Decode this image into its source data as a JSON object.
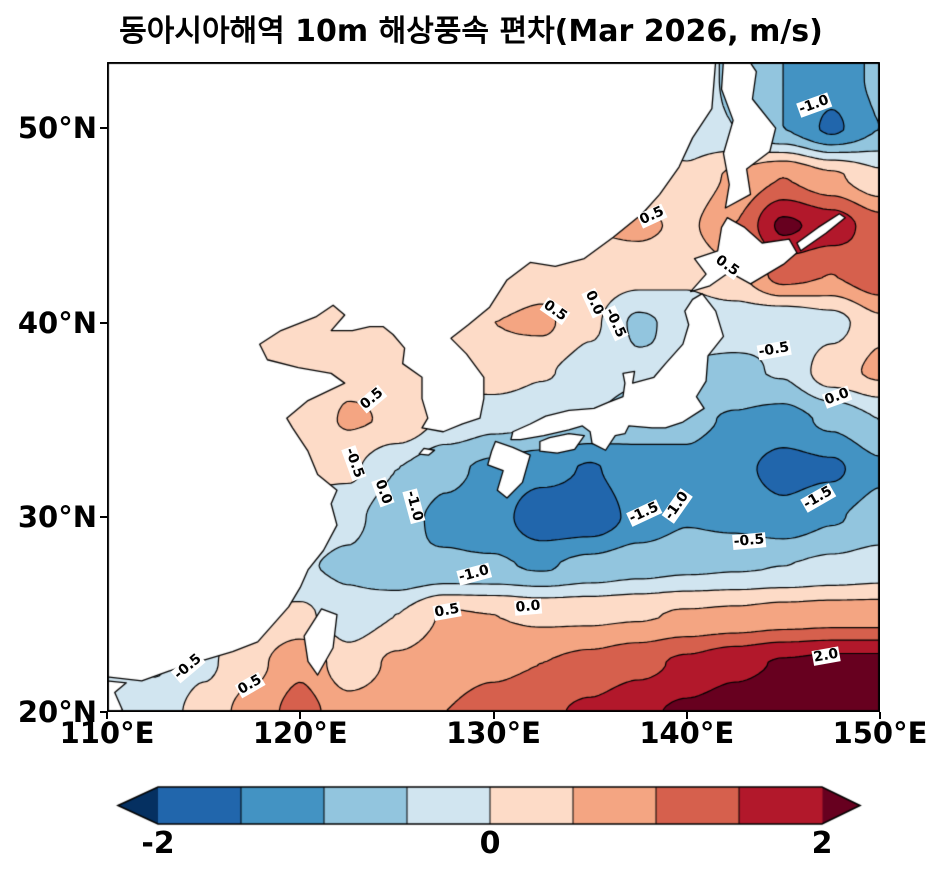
{
  "title": "동아시아해역 10m 해상풍속 편차(Mar 2026, m/s)",
  "axes": {
    "lon_min": 110,
    "lon_max": 150,
    "lat_min": 20,
    "lat_max": 53.4,
    "x_ticks": [
      {
        "label": "110°E",
        "lon": 110
      },
      {
        "label": "120°E",
        "lon": 120
      },
      {
        "label": "130°E",
        "lon": 130
      },
      {
        "label": "140°E",
        "lon": 140
      },
      {
        "label": "150°E",
        "lon": 150
      }
    ],
    "y_ticks": [
      {
        "label": "50°N",
        "lat": 50
      },
      {
        "label": "40°N",
        "lat": 40
      },
      {
        "label": "30°N",
        "lat": 30
      },
      {
        "label": "20°N",
        "lat": 20
      }
    ]
  },
  "colorbar": {
    "levels": [
      -2,
      -1.5,
      -1,
      -0.5,
      0,
      0.5,
      1,
      1.5,
      2
    ],
    "colors": [
      "#2166ac",
      "#4393c3",
      "#92c5de",
      "#d1e5f0",
      "#fddbc7",
      "#f4a582",
      "#d6604d",
      "#b2182b"
    ],
    "under_color": "#053061",
    "over_color": "#67001f",
    "tick_labels": [
      {
        "label": "-2",
        "frac": 0
      },
      {
        "label": "0",
        "frac": 0.5
      },
      {
        "label": "2",
        "frac": 1
      }
    ]
  },
  "chart_data": {
    "type": "heatmap",
    "units": "m/s",
    "lons": [
      110,
      112.5,
      115,
      117.5,
      120,
      122.5,
      125,
      127.5,
      130,
      132.5,
      135,
      137.5,
      140,
      142.5,
      145,
      147.5,
      150
    ],
    "lats": [
      52.5,
      50,
      47.5,
      45,
      42.5,
      40,
      37.5,
      35,
      32.5,
      30,
      27.5,
      25,
      22.5,
      20
    ],
    "values": [
      [
        0,
        0,
        0,
        0,
        0,
        0,
        0,
        0,
        0,
        0.1,
        0.1,
        0.1,
        -0.2,
        -0.6,
        -1.0,
        -1.3,
        -0.9
      ],
      [
        0,
        0,
        0,
        0,
        0,
        0,
        0,
        0,
        0,
        0.1,
        0.1,
        0.1,
        -0.3,
        -0.5,
        -1.0,
        -1.6,
        -1.0
      ],
      [
        0,
        0,
        0,
        0,
        0,
        0,
        0,
        0,
        0,
        0.1,
        0.2,
        0.2,
        0.1,
        0.6,
        1.0,
        0.6,
        0.1
      ],
      [
        0,
        0,
        0,
        0,
        0,
        0,
        0,
        0,
        0.1,
        0.3,
        0.5,
        0.6,
        0.4,
        1.0,
        2.1,
        1.8,
        1.2
      ],
      [
        0,
        0,
        0,
        0,
        0,
        0,
        0,
        0,
        0.1,
        0.3,
        0.3,
        0.2,
        0.1,
        0.4,
        1.2,
        1.0,
        1.4
      ],
      [
        0,
        0,
        0,
        0,
        0,
        0.1,
        0.1,
        0.2,
        0.5,
        0.6,
        0.1,
        -0.6,
        -0.3,
        -0.3,
        -0.45,
        -0.2,
        0.4
      ],
      [
        0,
        0,
        0,
        0,
        0.1,
        0.4,
        0.45,
        0.05,
        0.3,
        0.05,
        -0.2,
        -0.4,
        -0.55,
        -0.6,
        -0.45,
        0.3,
        0.6
      ],
      [
        0,
        0,
        0,
        0.1,
        0.2,
        0.55,
        0.45,
        -0.1,
        -0.35,
        -0.4,
        -0.5,
        -0.8,
        -0.9,
        -1.05,
        -1.2,
        -0.9,
        -0.5
      ],
      [
        0,
        0,
        0,
        0,
        0.1,
        0.1,
        -0.5,
        -0.9,
        -1.1,
        -1.3,
        -1.55,
        -1.2,
        -1.1,
        -1.35,
        -1.7,
        -1.6,
        -1.1
      ],
      [
        0,
        0,
        -0.1,
        -0.1,
        -0.15,
        -0.35,
        -0.85,
        -1.1,
        -1.25,
        -1.9,
        -1.85,
        -1.35,
        -1.05,
        -1.15,
        -1.35,
        -1.05,
        -0.8
      ],
      [
        0,
        -0.1,
        -0.2,
        -0.3,
        -0.45,
        -0.6,
        -1.0,
        -0.95,
        -0.95,
        -1.05,
        -0.85,
        -0.7,
        -0.6,
        -0.55,
        -0.5,
        -0.4,
        -0.3
      ],
      [
        -0.1,
        -0.1,
        -0.15,
        0.0,
        0.1,
        -0.3,
        0.0,
        0.55,
        0.5,
        0.4,
        0.4,
        0.45,
        0.55,
        0.6,
        0.7,
        0.75,
        0.75
      ],
      [
        -0.2,
        -0.55,
        -0.1,
        0.35,
        0.9,
        0.2,
        0.6,
        0.8,
        0.9,
        1.0,
        1.15,
        1.35,
        1.6,
        1.85,
        2.05,
        2.15,
        2.15
      ],
      [
        -0.1,
        -0.3,
        0.2,
        0.7,
        1.2,
        0.7,
        0.8,
        1.0,
        1.2,
        1.4,
        1.6,
        1.9,
        2.1,
        2.3,
        2.5,
        2.5,
        2.4
      ]
    ],
    "contour_levels_dashed": [
      -1.5,
      -1.0,
      -0.5
    ],
    "contour_levels_solid": [
      0,
      0.5,
      1.0,
      1.5,
      2.0
    ],
    "contour_labels": [
      {
        "text": "0.5",
        "lon": 138.2,
        "lat": 45.5,
        "rot": -25
      },
      {
        "text": "0.5",
        "lon": 142.1,
        "lat": 42.9,
        "rot": 35
      },
      {
        "text": "0.5",
        "lon": 133.2,
        "lat": 40.6,
        "rot": 35
      },
      {
        "text": "0.0",
        "lon": 135.2,
        "lat": 41.0,
        "rot": 65
      },
      {
        "text": "-0.5",
        "lon": 136.3,
        "lat": 40.0,
        "rot": 65
      },
      {
        "text": "-0.5",
        "lon": 144.5,
        "lat": 38.6,
        "rot": -10
      },
      {
        "text": "0.0",
        "lon": 147.8,
        "lat": 36.2,
        "rot": -20
      },
      {
        "text": "0.5",
        "lon": 123.7,
        "lat": 36.1,
        "rot": -40
      },
      {
        "text": "-0.5",
        "lon": 122.8,
        "lat": 32.8,
        "rot": 70
      },
      {
        "text": "0.0",
        "lon": 124.3,
        "lat": 31.3,
        "rot": 70
      },
      {
        "text": "-1.0",
        "lon": 125.9,
        "lat": 30.6,
        "rot": 75
      },
      {
        "text": "-1.0",
        "lon": 129.0,
        "lat": 27.1,
        "rot": -15
      },
      {
        "text": "-1.5",
        "lon": 137.8,
        "lat": 30.2,
        "rot": -25
      },
      {
        "text": "-1.0",
        "lon": 139.5,
        "lat": 30.6,
        "rot": -55
      },
      {
        "text": "-1.5",
        "lon": 146.8,
        "lat": 31.0,
        "rot": -30
      },
      {
        "text": "-0.5",
        "lon": 143.2,
        "lat": 28.8,
        "rot": -5
      },
      {
        "text": "0.5",
        "lon": 127.6,
        "lat": 25.2,
        "rot": -10
      },
      {
        "text": "0.0",
        "lon": 131.8,
        "lat": 25.4,
        "rot": -5
      },
      {
        "text": "0.5",
        "lon": 117.4,
        "lat": 21.4,
        "rot": -30
      },
      {
        "text": "-0.5",
        "lon": 114.2,
        "lat": 22.3,
        "rot": -40
      },
      {
        "text": "2.0",
        "lon": 147.2,
        "lat": 22.9,
        "rot": -10
      },
      {
        "text": "-1.0",
        "lon": 146.6,
        "lat": 51.2,
        "rot": -20
      }
    ]
  },
  "coastlines": {
    "mainland": [
      [
        110,
        21.8
      ],
      [
        111.8,
        21.6
      ],
      [
        113.2,
        22.1
      ],
      [
        114.8,
        22.6
      ],
      [
        116.5,
        23.1
      ],
      [
        117.8,
        23.6
      ],
      [
        118.6,
        24.5
      ],
      [
        119.4,
        25.4
      ],
      [
        120.0,
        26.4
      ],
      [
        120.4,
        27.3
      ],
      [
        121.2,
        28.3
      ],
      [
        121.9,
        29.6
      ],
      [
        121.6,
        30.7
      ],
      [
        121.9,
        31.4
      ],
      [
        120.9,
        32.2
      ],
      [
        120.4,
        33.4
      ],
      [
        119.6,
        34.6
      ],
      [
        119.3,
        35.1
      ],
      [
        120.4,
        36.0
      ],
      [
        122.3,
        36.9
      ],
      [
        121.6,
        37.4
      ],
      [
        119.9,
        37.7
      ],
      [
        118.3,
        38.1
      ],
      [
        117.9,
        38.9
      ],
      [
        119.0,
        39.6
      ],
      [
        120.8,
        40.3
      ],
      [
        121.7,
        40.9
      ],
      [
        122.3,
        40.4
      ],
      [
        121.6,
        39.6
      ],
      [
        122.7,
        39.6
      ],
      [
        123.6,
        39.8
      ],
      [
        124.3,
        39.8
      ],
      [
        124.8,
        39.4
      ],
      [
        125.4,
        38.7
      ],
      [
        125.3,
        37.9
      ],
      [
        126.3,
        37.2
      ],
      [
        126.3,
        36.1
      ],
      [
        126.6,
        35.1
      ],
      [
        126.3,
        34.6
      ],
      [
        127.4,
        34.4
      ],
      [
        128.4,
        34.8
      ],
      [
        129.3,
        35.1
      ],
      [
        129.5,
        36.1
      ],
      [
        129.5,
        37.2
      ],
      [
        128.6,
        38.4
      ],
      [
        127.8,
        39.2
      ],
      [
        128.7,
        39.9
      ],
      [
        129.8,
        40.8
      ],
      [
        130.7,
        42.2
      ],
      [
        131.9,
        43.1
      ],
      [
        133.2,
        42.9
      ],
      [
        134.7,
        43.3
      ],
      [
        136.2,
        44.4
      ],
      [
        137.7,
        45.6
      ],
      [
        138.6,
        46.6
      ],
      [
        139.6,
        48.0
      ],
      [
        140.3,
        49.5
      ],
      [
        141.3,
        51.0
      ],
      [
        141.5,
        53.5
      ],
      [
        110,
        53.5
      ]
    ],
    "honshu": [
      [
        140.8,
        41.5
      ],
      [
        141.5,
        40.6
      ],
      [
        141.9,
        39.3
      ],
      [
        141.1,
        38.3
      ],
      [
        141.0,
        37.0
      ],
      [
        140.5,
        36.2
      ],
      [
        140.9,
        35.6
      ],
      [
        139.8,
        34.9
      ],
      [
        138.9,
        34.6
      ],
      [
        138.2,
        34.6
      ],
      [
        137.0,
        34.7
      ],
      [
        136.8,
        34.3
      ],
      [
        136.3,
        34.2
      ],
      [
        135.8,
        33.45
      ],
      [
        135.1,
        33.8
      ],
      [
        135.0,
        34.4
      ],
      [
        134.6,
        34.7
      ],
      [
        133.9,
        34.5
      ],
      [
        132.6,
        34.2
      ],
      [
        131.4,
        34.0
      ],
      [
        130.9,
        34.0
      ],
      [
        131.0,
        34.4
      ],
      [
        131.9,
        34.8
      ],
      [
        132.7,
        35.2
      ],
      [
        133.9,
        35.5
      ],
      [
        135.2,
        35.6
      ],
      [
        135.9,
        35.9
      ],
      [
        136.7,
        36.2
      ],
      [
        136.8,
        36.9
      ],
      [
        136.7,
        37.4
      ],
      [
        137.3,
        37.5
      ],
      [
        137.2,
        36.9
      ],
      [
        138.3,
        37.2
      ],
      [
        138.9,
        37.9
      ],
      [
        139.8,
        38.9
      ],
      [
        140.1,
        39.9
      ],
      [
        139.9,
        40.6
      ],
      [
        140.3,
        41.2
      ]
    ],
    "kyushu": [
      [
        130.1,
        33.9
      ],
      [
        131.0,
        33.6
      ],
      [
        131.9,
        33.2
      ],
      [
        131.5,
        31.8
      ],
      [
        130.7,
        31.0
      ],
      [
        130.2,
        31.4
      ],
      [
        130.5,
        32.4
      ],
      [
        129.7,
        32.7
      ],
      [
        129.9,
        33.4
      ]
    ],
    "shikoku": [
      [
        132.4,
        33.4
      ],
      [
        133.3,
        33.3
      ],
      [
        134.2,
        33.5
      ],
      [
        134.7,
        34.2
      ],
      [
        133.9,
        34.3
      ],
      [
        132.9,
        34.1
      ],
      [
        132.4,
        33.9
      ]
    ],
    "hokkaido": [
      [
        140.2,
        41.6
      ],
      [
        141.0,
        42.5
      ],
      [
        140.4,
        43.3
      ],
      [
        141.6,
        43.7
      ],
      [
        141.8,
        44.9
      ],
      [
        142.1,
        45.4
      ],
      [
        143.0,
        44.9
      ],
      [
        143.9,
        44.1
      ],
      [
        145.3,
        44.3
      ],
      [
        145.7,
        43.6
      ],
      [
        145.0,
        43.0
      ],
      [
        143.3,
        42.0
      ],
      [
        142.2,
        42.6
      ],
      [
        141.2,
        41.9
      ]
    ],
    "sakhalin": [
      [
        142.0,
        45.9
      ],
      [
        143.3,
        46.6
      ],
      [
        143.1,
        47.9
      ],
      [
        144.3,
        48.8
      ],
      [
        144.6,
        50.0
      ],
      [
        143.4,
        51.5
      ],
      [
        143.6,
        52.9
      ],
      [
        143.2,
        53.5
      ],
      [
        141.9,
        53.5
      ],
      [
        141.8,
        52.0
      ],
      [
        142.4,
        50.4
      ],
      [
        141.9,
        48.7
      ],
      [
        142.2,
        47.1
      ]
    ],
    "taiwan": [
      [
        120.9,
        21.9
      ],
      [
        121.7,
        23.3
      ],
      [
        121.9,
        25.0
      ],
      [
        121.1,
        25.3
      ],
      [
        120.2,
        23.9
      ],
      [
        120.4,
        22.6
      ]
    ],
    "jeju": [
      [
        126.15,
        33.25
      ],
      [
        126.65,
        33.2
      ],
      [
        126.95,
        33.45
      ],
      [
        126.4,
        33.55
      ]
    ],
    "kuril": [
      [
        145.9,
        43.7
      ],
      [
        147.2,
        44.6
      ],
      [
        148.2,
        45.4
      ],
      [
        147.9,
        45.6
      ],
      [
        146.8,
        44.9
      ],
      [
        145.7,
        44.1
      ]
    ],
    "leizhou": [
      [
        110,
        19.9
      ],
      [
        110.8,
        20.1
      ],
      [
        110.4,
        21.0
      ],
      [
        111.0,
        21.5
      ],
      [
        110,
        21.6
      ]
    ]
  }
}
